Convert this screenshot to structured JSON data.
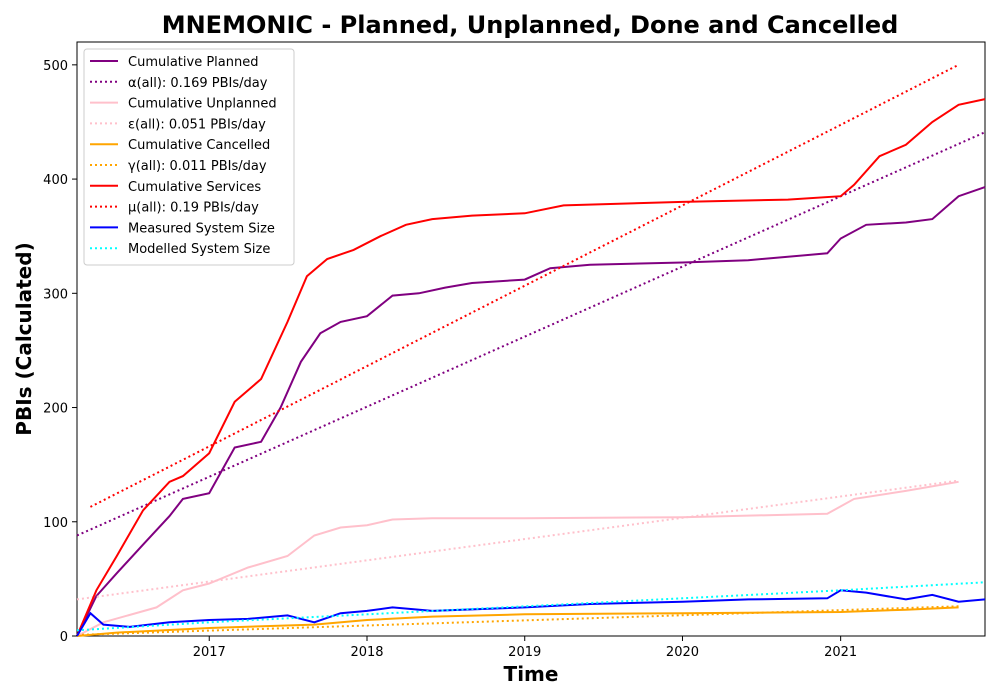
{
  "chart_data": {
    "type": "line",
    "title": "MNEMONIC - Planned, Unplanned, Done  and Cancelled",
    "xlabel": "Time",
    "ylabel": "PBIs (Calculated)",
    "xlim": [
      "2016-03-01",
      "2021-12-01"
    ],
    "ylim": [
      0,
      520
    ],
    "xticks": [
      {
        "label": "2017",
        "value": "2017-01-01"
      },
      {
        "label": "2018",
        "value": "2018-01-01"
      },
      {
        "label": "2019",
        "value": "2019-01-01"
      },
      {
        "label": "2020",
        "value": "2020-01-01"
      },
      {
        "label": "2021",
        "value": "2021-01-01"
      }
    ],
    "yticks": [
      0,
      100,
      200,
      300,
      400,
      500
    ],
    "grid": false,
    "legend_position": "top-left",
    "series": [
      {
        "name": "Cumulative Planned",
        "style": "solid",
        "color": "#800080",
        "x": [
          "2016-03-01",
          "2016-04-15",
          "2016-06-01",
          "2016-08-01",
          "2016-10-01",
          "2016-11-01",
          "2017-01-01",
          "2017-03-01",
          "2017-05-01",
          "2017-06-15",
          "2017-08-01",
          "2017-09-15",
          "2017-11-01",
          "2018-01-01",
          "2018-03-01",
          "2018-05-01",
          "2018-07-01",
          "2018-09-01",
          "2019-01-01",
          "2019-03-01",
          "2019-06-01",
          "2020-01-01",
          "2020-06-01",
          "2020-09-01",
          "2020-12-01",
          "2021-01-01",
          "2021-03-01",
          "2021-06-01",
          "2021-08-01",
          "2021-10-01",
          "2021-12-01"
        ],
        "y": [
          0,
          35,
          55,
          80,
          105,
          120,
          125,
          165,
          170,
          200,
          240,
          265,
          275,
          280,
          298,
          300,
          305,
          309,
          312,
          322,
          325,
          327,
          329,
          332,
          335,
          348,
          360,
          362,
          365,
          385,
          393
        ]
      },
      {
        "name": "α(all): 0.169 PBIs/day",
        "style": "dotted",
        "color": "#800080",
        "x": [
          "2016-03-01",
          "2021-12-01"
        ],
        "y": [
          88,
          441
        ]
      },
      {
        "name": "Cumulative Unplanned",
        "style": "solid",
        "color": "#ffc0cb",
        "x": [
          "2016-03-01",
          "2016-05-01",
          "2016-09-01",
          "2016-11-01",
          "2017-01-01",
          "2017-04-01",
          "2017-07-01",
          "2017-09-01",
          "2017-11-01",
          "2018-01-01",
          "2018-03-01",
          "2018-06-01",
          "2019-01-01",
          "2020-01-01",
          "2020-12-01",
          "2021-02-01",
          "2021-06-01",
          "2021-10-01"
        ],
        "y": [
          0,
          12,
          25,
          40,
          46,
          60,
          70,
          88,
          95,
          97,
          102,
          103,
          103,
          104,
          107,
          120,
          127,
          135
        ]
      },
      {
        "name": "ε(all): 0.051 PBIs/day",
        "style": "dotted",
        "color": "#ffc0cb",
        "x": [
          "2016-03-01",
          "2021-10-01"
        ],
        "y": [
          32,
          136
        ]
      },
      {
        "name": "Cumulative Cancelled",
        "style": "solid",
        "color": "#ffa500",
        "x": [
          "2016-03-01",
          "2016-06-01",
          "2017-01-01",
          "2017-09-01",
          "2018-01-01",
          "2018-06-01",
          "2019-01-01",
          "2020-01-01",
          "2021-01-01",
          "2021-06-01",
          "2021-10-01"
        ],
        "y": [
          0,
          3,
          7,
          10,
          14,
          17,
          19,
          20,
          21,
          23,
          25
        ]
      },
      {
        "name": "γ(all): 0.011 PBIs/day",
        "style": "dotted",
        "color": "#ffa500",
        "x": [
          "2016-03-01",
          "2021-10-01"
        ],
        "y": [
          1,
          26
        ]
      },
      {
        "name": "Cumulative Services",
        "style": "solid",
        "color": "#ff0000",
        "x": [
          "2016-03-01",
          "2016-04-15",
          "2016-06-01",
          "2016-08-01",
          "2016-10-01",
          "2016-11-01",
          "2017-01-01",
          "2017-03-01",
          "2017-05-01",
          "2017-07-01",
          "2017-08-15",
          "2017-10-01",
          "2017-12-01",
          "2018-02-01",
          "2018-04-01",
          "2018-06-01",
          "2018-09-01",
          "2019-01-01",
          "2019-04-01",
          "2020-01-01",
          "2020-09-01",
          "2021-01-01",
          "2021-02-01",
          "2021-04-01",
          "2021-06-01",
          "2021-08-01",
          "2021-10-01",
          "2021-12-01"
        ],
        "y": [
          0,
          40,
          70,
          110,
          135,
          140,
          160,
          205,
          225,
          275,
          315,
          330,
          338,
          350,
          360,
          365,
          368,
          370,
          377,
          380,
          382,
          385,
          395,
          420,
          430,
          450,
          465,
          470
        ]
      },
      {
        "name": "μ(all): 0.19 PBIs/day",
        "style": "dotted",
        "color": "#ff0000",
        "x": [
          "2016-04-01",
          "2021-10-01"
        ],
        "y": [
          113,
          500
        ]
      },
      {
        "name": "Measured System Size",
        "style": "solid",
        "color": "#0000ff",
        "x": [
          "2016-03-01",
          "2016-04-01",
          "2016-05-01",
          "2016-07-01",
          "2016-10-01",
          "2017-01-01",
          "2017-04-01",
          "2017-07-01",
          "2017-09-01",
          "2017-11-01",
          "2018-01-01",
          "2018-03-01",
          "2018-06-01",
          "2019-01-01",
          "2019-06-01",
          "2020-01-01",
          "2020-06-01",
          "2020-12-01",
          "2021-01-01",
          "2021-03-01",
          "2021-06-01",
          "2021-08-01",
          "2021-10-01",
          "2021-12-01"
        ],
        "y": [
          0,
          20,
          10,
          8,
          12,
          14,
          15,
          18,
          12,
          20,
          22,
          25,
          22,
          25,
          28,
          30,
          32,
          33,
          40,
          38,
          32,
          36,
          30,
          32
        ]
      },
      {
        "name": "Modelled System Size",
        "style": "dotted",
        "color": "#00ffff",
        "x": [
          "2016-03-01",
          "2017-01-01",
          "2018-01-01",
          "2019-01-01",
          "2020-01-01",
          "2021-01-01",
          "2021-12-01"
        ],
        "y": [
          5,
          12,
          19,
          26,
          33,
          40,
          47
        ]
      }
    ]
  }
}
